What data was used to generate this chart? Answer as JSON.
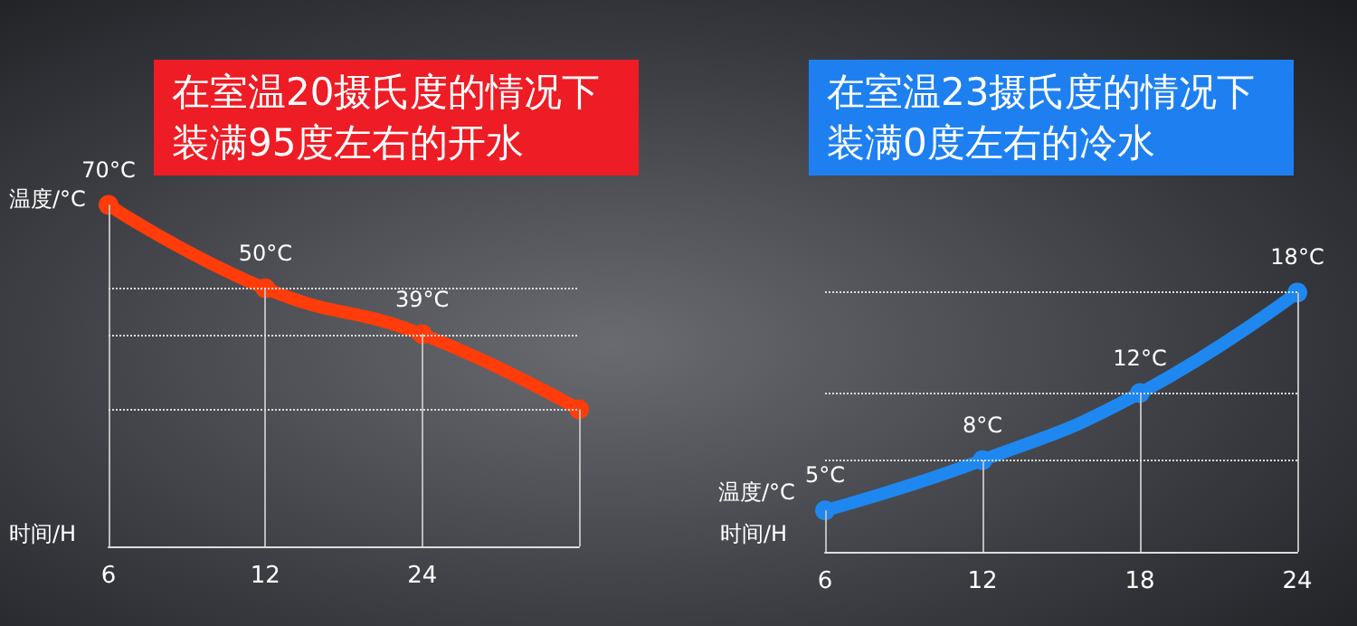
{
  "chart_data": [
    {
      "type": "line",
      "title": "在室温20摄氏度的情况下装满95度左右的开水",
      "xlabel": "时间/H",
      "ylabel": "温度/°C",
      "categories": [
        "6",
        "12",
        "24",
        null
      ],
      "ref_lines": [
        {
          "axis": "y",
          "value": 50,
          "color": "#dddddd",
          "line_style": "dotted"
        },
        {
          "axis": "y",
          "value": 39,
          "color": "#dddddd",
          "line_style": "dotted"
        },
        {
          "axis": "y",
          "value": 21,
          "color": "#dddddd",
          "line_style": "dotted"
        }
      ],
      "tick_labels": "x",
      "marker": "circle",
      "series": [
        {
          "color": "#ff3c0a",
          "values": [
            70,
            50,
            39,
            21
          ],
          "value_labels": [
            "70°C",
            "50°C",
            "39°C",
            null
          ]
        }
      ]
    },
    {
      "type": "line",
      "title": "在室温23摄氏度的情况下装满0度左右的冷水",
      "xlabel": "时间/H",
      "ylabel": "温度/°C",
      "x": [
        6,
        12,
        18,
        24
      ],
      "xlim": [
        6,
        24
      ],
      "xticks": [
        6,
        12,
        18,
        24
      ],
      "ref_lines": [
        {
          "axis": "y",
          "value": 8,
          "color": "#dddddd",
          "line_style": "dotted"
        },
        {
          "axis": "y",
          "value": 12,
          "color": "#dddddd",
          "line_style": "dotted"
        },
        {
          "axis": "y",
          "value": 18,
          "color": "#dddddd",
          "line_style": "dotted"
        }
      ],
      "tick_labels": "x",
      "marker": "circle",
      "series": [
        {
          "color": "#1e88f0",
          "values": [
            5,
            8,
            12,
            18
          ],
          "value_labels": [
            "5°C",
            "8°C",
            "12°C",
            "18°C"
          ]
        }
      ]
    }
  ]
}
